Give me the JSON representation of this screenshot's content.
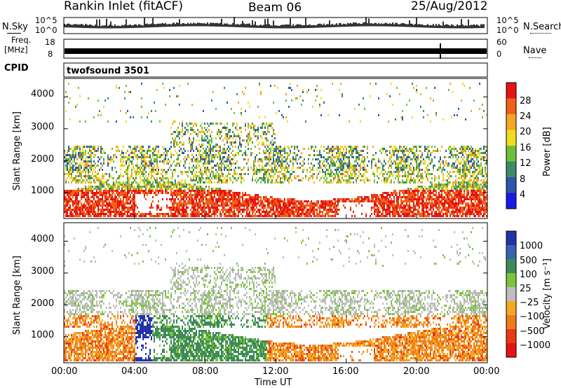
{
  "header": {
    "station": "Rankin Inlet (fitACF)",
    "beam": "Beam 06",
    "date": "25/Aug/2012"
  },
  "top_panels": {
    "noise_left_label": "N.Sky",
    "noise_left_ticks": [
      "10^5",
      "10^0"
    ],
    "noise_right_label": "N.Search",
    "noise_right_ticks": [
      "10^5",
      "10^0"
    ],
    "freq_label_1": "Freq.",
    "freq_label_2": "[MHz]",
    "freq_ticks": [
      "18",
      "8"
    ],
    "nave_label": "Nave",
    "nave_ticks": [
      "60",
      "0"
    ],
    "cpid_label": "CPID",
    "cpid_value": "twofsound 3501"
  },
  "chart_data": [
    {
      "type": "heatmap",
      "name": "power",
      "ylabel": "Slant Range [km]",
      "yticks": [
        "4000",
        "3000",
        "2000",
        "1000"
      ],
      "ylim": [
        180,
        4580
      ],
      "xlim": [
        0,
        24
      ],
      "colorbar_label": "Power [dB]",
      "colorbar_ticks": [
        "28",
        "24",
        "20",
        "16",
        "12",
        "8",
        "4"
      ],
      "colors": [
        "#1a1ae6",
        "#2f55aa",
        "#3d8a6a",
        "#6fbf3a",
        "#f0dc1e",
        "#f5a623",
        "#f06018",
        "#e61414"
      ]
    },
    {
      "type": "heatmap",
      "name": "velocity",
      "ylabel": "Slant Range [km]",
      "yticks": [
        "4000",
        "3000",
        "2000",
        "1000"
      ],
      "ylim": [
        180,
        4580
      ],
      "xlim": [
        0,
        24
      ],
      "colorbar_label": "Velocity [m s⁻¹]",
      "colorbar_ticks": [
        "1000",
        "500",
        "100",
        "25",
        "−25",
        "−100",
        "−500",
        "−1000"
      ],
      "colors": [
        "#2233aa",
        "#3a62b0",
        "#3d8a5a",
        "#7cc43a",
        "#bdbdbd",
        "#f5a623",
        "#f07a1a",
        "#ea3a14",
        "#e61414"
      ]
    }
  ],
  "x_axis": {
    "ticks": [
      "00:00",
      "04:00",
      "08:00",
      "12:00",
      "16:00",
      "20:00",
      "00:00"
    ],
    "label": "Time UT"
  }
}
